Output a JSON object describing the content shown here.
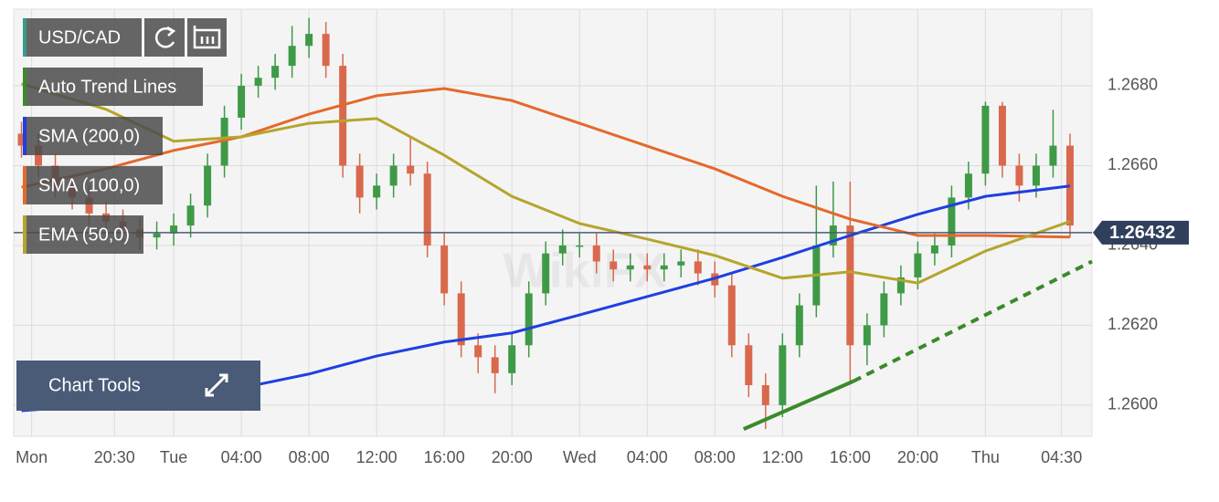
{
  "chart_data": {
    "type": "candlestick",
    "symbol": "USD/CAD",
    "tools_label": "Chart Tools",
    "watermark": "WikiFX",
    "xlim": [
      14.54,
      78.3
    ],
    "ylim": [
      1.25922,
      1.26992
    ],
    "xticks": [
      {
        "value": 15.6,
        "label": "Mon"
      },
      {
        "value": 20.5,
        "label": "20:30"
      },
      {
        "value": 24,
        "label": "Tue"
      },
      {
        "value": 28,
        "label": "04:00"
      },
      {
        "value": 32,
        "label": "08:00"
      },
      {
        "value": 36,
        "label": "12:00"
      },
      {
        "value": 40,
        "label": "16:00"
      },
      {
        "value": 44,
        "label": "20:00"
      },
      {
        "value": 48,
        "label": "Wed"
      },
      {
        "value": 52,
        "label": "04:00"
      },
      {
        "value": 56,
        "label": "08:00"
      },
      {
        "value": 60,
        "label": "12:00"
      },
      {
        "value": 64,
        "label": "16:00"
      },
      {
        "value": 68,
        "label": "20:00"
      },
      {
        "value": 72,
        "label": "Thu"
      },
      {
        "value": 76.5,
        "label": "04:30"
      }
    ],
    "yticks": [
      {
        "value": 1.26,
        "label": "1.2600"
      },
      {
        "value": 1.262,
        "label": "1.2620"
      },
      {
        "value": 1.264,
        "label": "1.2640"
      },
      {
        "value": 1.266,
        "label": "1.2660"
      },
      {
        "value": 1.268,
        "label": "1.2680"
      }
    ],
    "grid": true,
    "up_color": "#3f9a47",
    "down_color": "#d9694c",
    "x": [
      15,
      16,
      17,
      18,
      19,
      20,
      21,
      22,
      23,
      24,
      25,
      26,
      27,
      28,
      29,
      30,
      31,
      32,
      33,
      34,
      35,
      36,
      37,
      38,
      39,
      40,
      41,
      42,
      43,
      44,
      45,
      46,
      47,
      48,
      49,
      50,
      51,
      52,
      53,
      54,
      55,
      56,
      57,
      58,
      59,
      60,
      61,
      62,
      63,
      64,
      65,
      66,
      67,
      68,
      69,
      70,
      71,
      72,
      73,
      74,
      75,
      76,
      77
    ],
    "open": [
      1.2668,
      1.2665,
      1.266,
      1.2655,
      1.2652,
      1.2648,
      1.2646,
      1.2644,
      1.2642,
      1.2643,
      1.2645,
      1.265,
      1.266,
      1.2672,
      1.268,
      1.2682,
      1.2685,
      1.269,
      1.2693,
      1.2685,
      1.266,
      1.2652,
      1.2655,
      1.266,
      1.2658,
      1.264,
      1.2628,
      1.2615,
      1.2612,
      1.2608,
      1.2615,
      1.2628,
      1.2638,
      1.264,
      1.264,
      1.2636,
      1.2634,
      1.2635,
      1.2634,
      1.2635,
      1.2636,
      1.2633,
      1.263,
      1.2615,
      1.2605,
      1.26,
      1.2615,
      1.2625,
      1.264,
      1.2645,
      1.2615,
      1.262,
      1.2628,
      1.2632,
      1.2638,
      1.264,
      1.2652,
      1.2658,
      1.2675,
      1.266,
      1.2655,
      1.266,
      1.2665
    ],
    "high": [
      1.2671,
      1.2668,
      1.2663,
      1.2658,
      1.2655,
      1.2651,
      1.2649,
      1.2647,
      1.2646,
      1.2648,
      1.2653,
      1.2663,
      1.2675,
      1.2683,
      1.2685,
      1.2688,
      1.2695,
      1.2697,
      1.2696,
      1.2688,
      1.2663,
      1.2658,
      1.2663,
      1.2667,
      1.2661,
      1.2643,
      1.2631,
      1.2618,
      1.2615,
      1.2618,
      1.2631,
      1.2641,
      1.2644,
      1.2643,
      1.2643,
      1.2639,
      1.2638,
      1.2638,
      1.2638,
      1.2639,
      1.2639,
      1.2636,
      1.2633,
      1.2618,
      1.2608,
      1.2618,
      1.2628,
      1.2655,
      1.2656,
      1.2656,
      1.2623,
      1.2631,
      1.2635,
      1.2641,
      1.2643,
      1.2655,
      1.2661,
      1.2676,
      1.2676,
      1.2663,
      1.2663,
      1.2674,
      1.2668
    ],
    "low": [
      1.2662,
      1.2657,
      1.2652,
      1.2649,
      1.2645,
      1.2643,
      1.2641,
      1.2639,
      1.2639,
      1.264,
      1.2642,
      1.2647,
      1.2657,
      1.2669,
      1.2677,
      1.2679,
      1.2682,
      1.2687,
      1.2682,
      1.2657,
      1.2648,
      1.2649,
      1.2652,
      1.2655,
      1.2637,
      1.2625,
      1.2612,
      1.2608,
      1.2603,
      1.2605,
      1.2612,
      1.2625,
      1.2635,
      1.2637,
      1.2633,
      1.2631,
      1.2631,
      1.2631,
      1.2631,
      1.2632,
      1.263,
      1.2627,
      1.2612,
      1.2602,
      1.2594,
      1.2597,
      1.2612,
      1.2622,
      1.2637,
      1.2606,
      1.261,
      1.2617,
      1.2625,
      1.2629,
      1.2635,
      1.2637,
      1.2649,
      1.2655,
      1.2657,
      1.2651,
      1.2652,
      1.2657,
      1.2642
    ],
    "close": [
      1.2665,
      1.266,
      1.2655,
      1.2652,
      1.2648,
      1.2646,
      1.2644,
      1.2642,
      1.2643,
      1.2645,
      1.265,
      1.266,
      1.2672,
      1.268,
      1.2682,
      1.2685,
      1.269,
      1.2693,
      1.2685,
      1.266,
      1.2652,
      1.2655,
      1.266,
      1.2658,
      1.264,
      1.2628,
      1.2615,
      1.2612,
      1.2608,
      1.2615,
      1.2628,
      1.2638,
      1.264,
      1.264,
      1.2636,
      1.2634,
      1.2635,
      1.2634,
      1.2635,
      1.2636,
      1.2633,
      1.263,
      1.2615,
      1.2605,
      1.26,
      1.2615,
      1.2625,
      1.264,
      1.2645,
      1.2615,
      1.262,
      1.2628,
      1.2632,
      1.2638,
      1.264,
      1.2652,
      1.2658,
      1.2675,
      1.266,
      1.2655,
      1.266,
      1.2665,
      1.2645
    ],
    "series": [
      {
        "name": "SMA (200,0)",
        "color": "#1f3fe0",
        "x": [
          15,
          20,
          24,
          28,
          32,
          36,
          40,
          44,
          48,
          52,
          56,
          60,
          64,
          68,
          72,
          77
        ],
        "values": [
          1.25986,
          1.26002,
          1.26018,
          1.26043,
          1.26078,
          1.26123,
          1.26158,
          1.26181,
          1.26226,
          1.26272,
          1.26318,
          1.2637,
          1.26425,
          1.26478,
          1.26523,
          1.26549
        ]
      },
      {
        "name": "SMA (100,0)",
        "color": "#e4692a",
        "x": [
          15,
          20,
          24,
          28,
          32,
          36,
          40,
          44,
          48,
          52,
          56,
          60,
          64,
          68,
          72,
          77
        ],
        "values": [
          1.26546,
          1.26592,
          1.26638,
          1.26672,
          1.26729,
          1.26775,
          1.26793,
          1.26763,
          1.26706,
          1.26649,
          1.26592,
          1.26523,
          1.26466,
          1.26425,
          1.26425,
          1.26421
        ]
      },
      {
        "name": "EMA (50,0)",
        "color": "#b5a52c",
        "x": [
          15,
          20,
          24,
          28,
          32,
          36,
          40,
          44,
          48,
          52,
          56,
          60,
          64,
          68,
          72,
          77
        ],
        "values": [
          1.26805,
          1.26741,
          1.26661,
          1.26672,
          1.26706,
          1.26718,
          1.26626,
          1.26523,
          1.26455,
          1.26416,
          1.26375,
          1.26318,
          1.26334,
          1.26306,
          1.26386,
          1.2646
        ]
      }
    ],
    "trend_line": {
      "name": "Auto Trend Lines",
      "color": "#3b8a2a",
      "x": [
        57.7,
        64.2
      ],
      "values": [
        1.2594,
        1.2606
      ],
      "projection_x": [
        64.2,
        78.3
      ],
      "projection_values": [
        1.2606,
        1.2636
      ]
    },
    "last_price": 1.26432
  }
}
